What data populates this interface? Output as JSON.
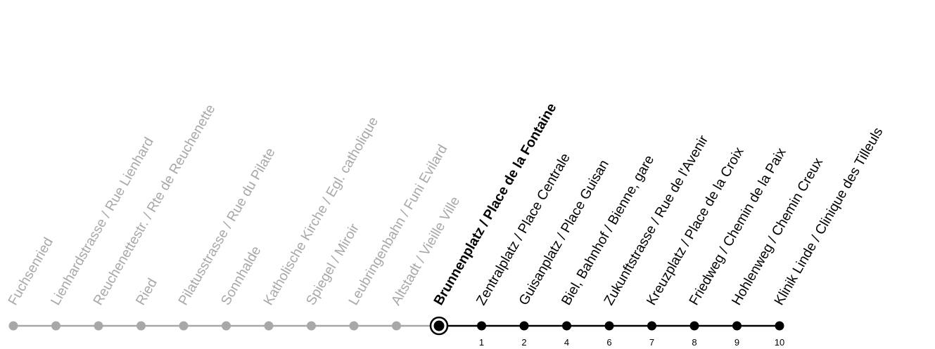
{
  "colors": {
    "past": "#a8a8a8",
    "future": "#000000",
    "current": "#000000",
    "background": "#ffffff"
  },
  "route": {
    "current_index": 10,
    "stops": [
      {
        "name": "Fuchsenried",
        "status": "past",
        "minutes": ""
      },
      {
        "name": "Lienhardstrasse / Rue Lienhard",
        "status": "past",
        "minutes": ""
      },
      {
        "name": "Reuchenettestr. / Rte de Reuchenette",
        "status": "past",
        "minutes": ""
      },
      {
        "name": "Ried",
        "status": "past",
        "minutes": ""
      },
      {
        "name": "Pilatusstrasse / Rue du Pilate",
        "status": "past",
        "minutes": ""
      },
      {
        "name": "Sonnhalde",
        "status": "past",
        "minutes": ""
      },
      {
        "name": "Katholische Kirche / Egl. catholique",
        "status": "past",
        "minutes": ""
      },
      {
        "name": "Spiegel / Miroir",
        "status": "past",
        "minutes": ""
      },
      {
        "name": "Leubringenbahn / Funi Evilard",
        "status": "past",
        "minutes": ""
      },
      {
        "name": "Altstadt / Vieille Ville",
        "status": "past",
        "minutes": ""
      },
      {
        "name": "Brunnenplatz / Place de la Fontaine",
        "status": "current",
        "minutes": ""
      },
      {
        "name": "Zentralplatz / Place Centrale",
        "status": "future",
        "minutes": "1"
      },
      {
        "name": "Guisanplatz / Place Guisan",
        "status": "future",
        "minutes": "2"
      },
      {
        "name": "Biel, Bahnhof / Bienne, gare",
        "status": "future",
        "minutes": "4"
      },
      {
        "name": "Zukunftstrasse / Rue de l'Avenir",
        "status": "future",
        "minutes": "6"
      },
      {
        "name": "Kreuzplatz / Place de la Croix",
        "status": "future",
        "minutes": "7"
      },
      {
        "name": "Friedweg / Chemin de la Paix",
        "status": "future",
        "minutes": "8"
      },
      {
        "name": "Hohlenweg / Chemin Creux",
        "status": "future",
        "minutes": "9"
      },
      {
        "name": "Klinik Linde / Clinique des Tilleuls",
        "status": "future",
        "minutes": "10"
      }
    ]
  }
}
